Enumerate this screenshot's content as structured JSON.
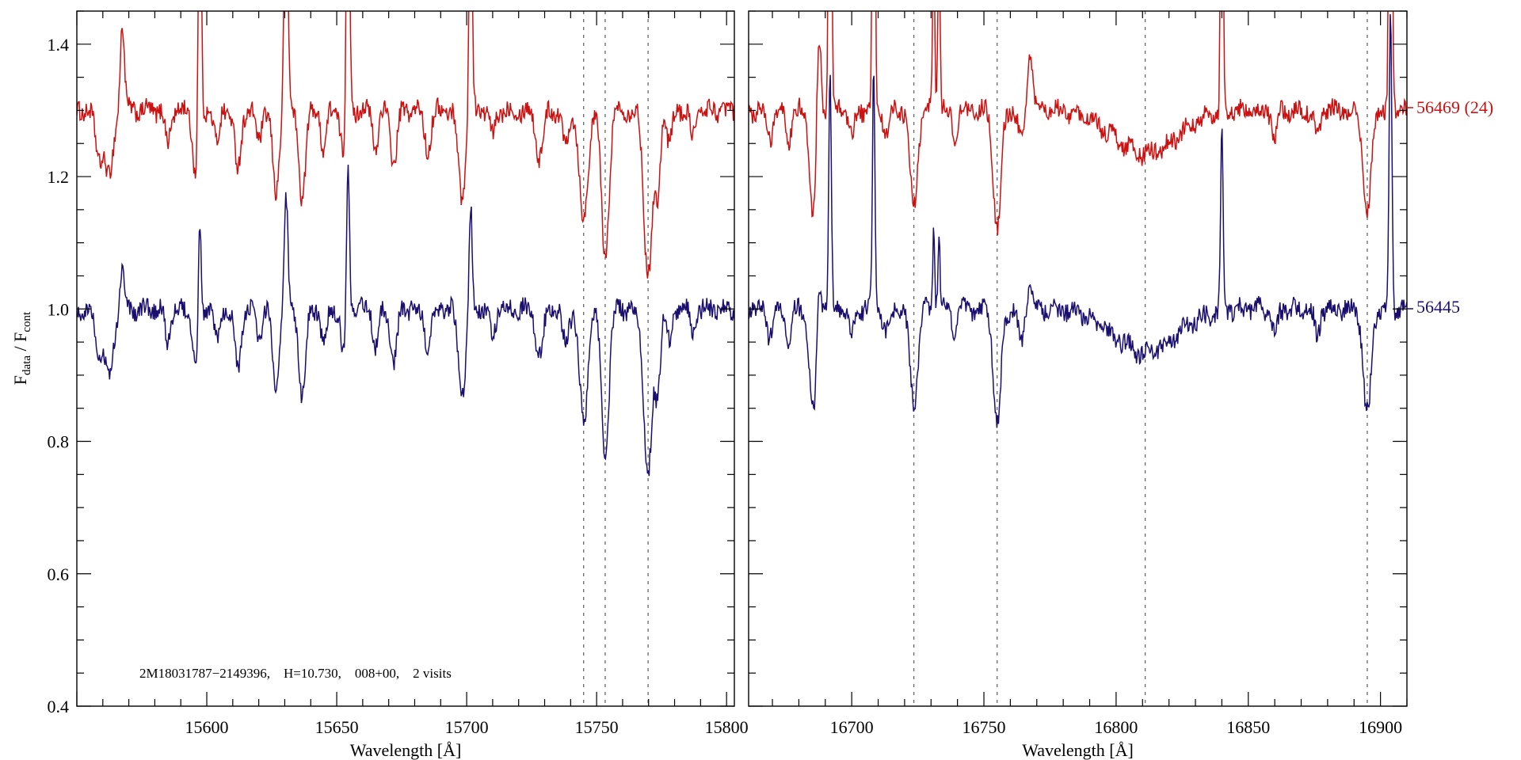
{
  "chart_data": {
    "type": "line",
    "ylabel_main": "F",
    "ylabel_num_sub": "data",
    "ylabel_sep": " / F",
    "ylabel_den_sub": "cont",
    "ylim": [
      0.4,
      1.45
    ],
    "yticks": [
      0.4,
      0.6,
      0.8,
      1.0,
      1.2,
      1.4
    ],
    "ytick_labels": [
      "0.4",
      "0.6",
      "0.8",
      "1.0",
      "1.2",
      "1.4"
    ],
    "annotation": "2M18031787−2149396,    H=10.730,    008+00,    2 visits",
    "colors": {
      "red": "#cc1111",
      "blue": "#1a0f6e",
      "guide": "#666666",
      "axis": "#000000"
    },
    "series": [
      {
        "name": "56469 (24)",
        "color": "#cc1111",
        "offset": 0.3
      },
      {
        "name": "56445",
        "color": "#1a0f6e",
        "offset": 0.0
      }
    ],
    "panels": [
      {
        "xlim": [
          15550,
          15803
        ],
        "xticks": [
          15600,
          15650,
          15700,
          15750,
          15800
        ],
        "xtick_labels": [
          "15600",
          "15650",
          "15700",
          "15750",
          "15800"
        ],
        "xlabel": "Wavelength [Å]",
        "guide_lines": [
          15745.0,
          15753.3,
          15769.8
        ],
        "absorption": [
          [
            15558.5,
            0.07,
            1.4
          ],
          [
            15562.5,
            0.1,
            1.6
          ],
          [
            15585,
            0.05,
            1.0
          ],
          [
            15596.2,
            0.11,
            1.4
          ],
          [
            15604,
            0.05,
            1.0
          ],
          [
            15612,
            0.09,
            1.2
          ],
          [
            15620,
            0.05,
            1.0
          ],
          [
            15626.6,
            0.13,
            1.2
          ],
          [
            15636.7,
            0.13,
            1.3
          ],
          [
            15645,
            0.06,
            1.0
          ],
          [
            15653.0,
            0.08,
            1.2
          ],
          [
            15665,
            0.06,
            1.0
          ],
          [
            15672,
            0.08,
            1.2
          ],
          [
            15685,
            0.06,
            1.2
          ],
          [
            15698.2,
            0.13,
            1.4
          ],
          [
            15710,
            0.04,
            1.0
          ],
          [
            15728,
            0.07,
            1.4
          ],
          [
            15738,
            0.05,
            1.2
          ],
          [
            15745.0,
            0.17,
            1.6
          ],
          [
            15753.3,
            0.23,
            1.4
          ],
          [
            15769.8,
            0.25,
            1.6
          ],
          [
            15773.5,
            0.12,
            1.0
          ],
          [
            15778,
            0.05,
            1.0
          ],
          [
            15787,
            0.04,
            1.0
          ]
        ],
        "emission": [
          [
            15567.5,
            0.06,
            0.8
          ],
          [
            15597.3,
            0.2,
            0.6
          ],
          [
            15630.5,
            0.17,
            0.7
          ],
          [
            15654.3,
            0.25,
            0.6
          ],
          [
            15701.5,
            0.16,
            0.6
          ]
        ],
        "broad": []
      },
      {
        "xlim": [
          16661,
          16910
        ],
        "xticks": [
          16700,
          16750,
          16800,
          16850,
          16900
        ],
        "xtick_labels": [
          "16700",
          "16750",
          "16800",
          "16850",
          "16900"
        ],
        "xlabel": "Wavelength [Å]",
        "guide_lines": [
          16723.5,
          16755.0,
          16811.0,
          16895.0
        ],
        "absorption": [
          [
            16669,
            0.04,
            1.0
          ],
          [
            16676,
            0.05,
            1.0
          ],
          [
            16685.5,
            0.16,
            1.4
          ],
          [
            16700,
            0.04,
            1.0
          ],
          [
            16713,
            0.04,
            1.0
          ],
          [
            16723.5,
            0.14,
            1.5
          ],
          [
            16739,
            0.04,
            1.0
          ],
          [
            16755.0,
            0.18,
            1.4
          ],
          [
            16764,
            0.05,
            1.0
          ],
          [
            16860,
            0.04,
            1.0
          ],
          [
            16876,
            0.04,
            1.0
          ],
          [
            16895.0,
            0.16,
            1.5
          ]
        ],
        "emission": [
          [
            16687.5,
            0.07,
            0.8
          ],
          [
            16691.8,
            0.35,
            0.5
          ],
          [
            16708.3,
            0.37,
            0.45
          ],
          [
            16731.0,
            0.12,
            0.4
          ],
          [
            16733.0,
            0.12,
            0.4
          ],
          [
            16767.5,
            0.04,
            1.0
          ],
          [
            16840.0,
            0.28,
            0.45
          ],
          [
            16903.8,
            0.45,
            0.5
          ]
        ],
        "broad": [
          [
            16811.0,
            0.065,
            12.0
          ]
        ]
      }
    ]
  }
}
